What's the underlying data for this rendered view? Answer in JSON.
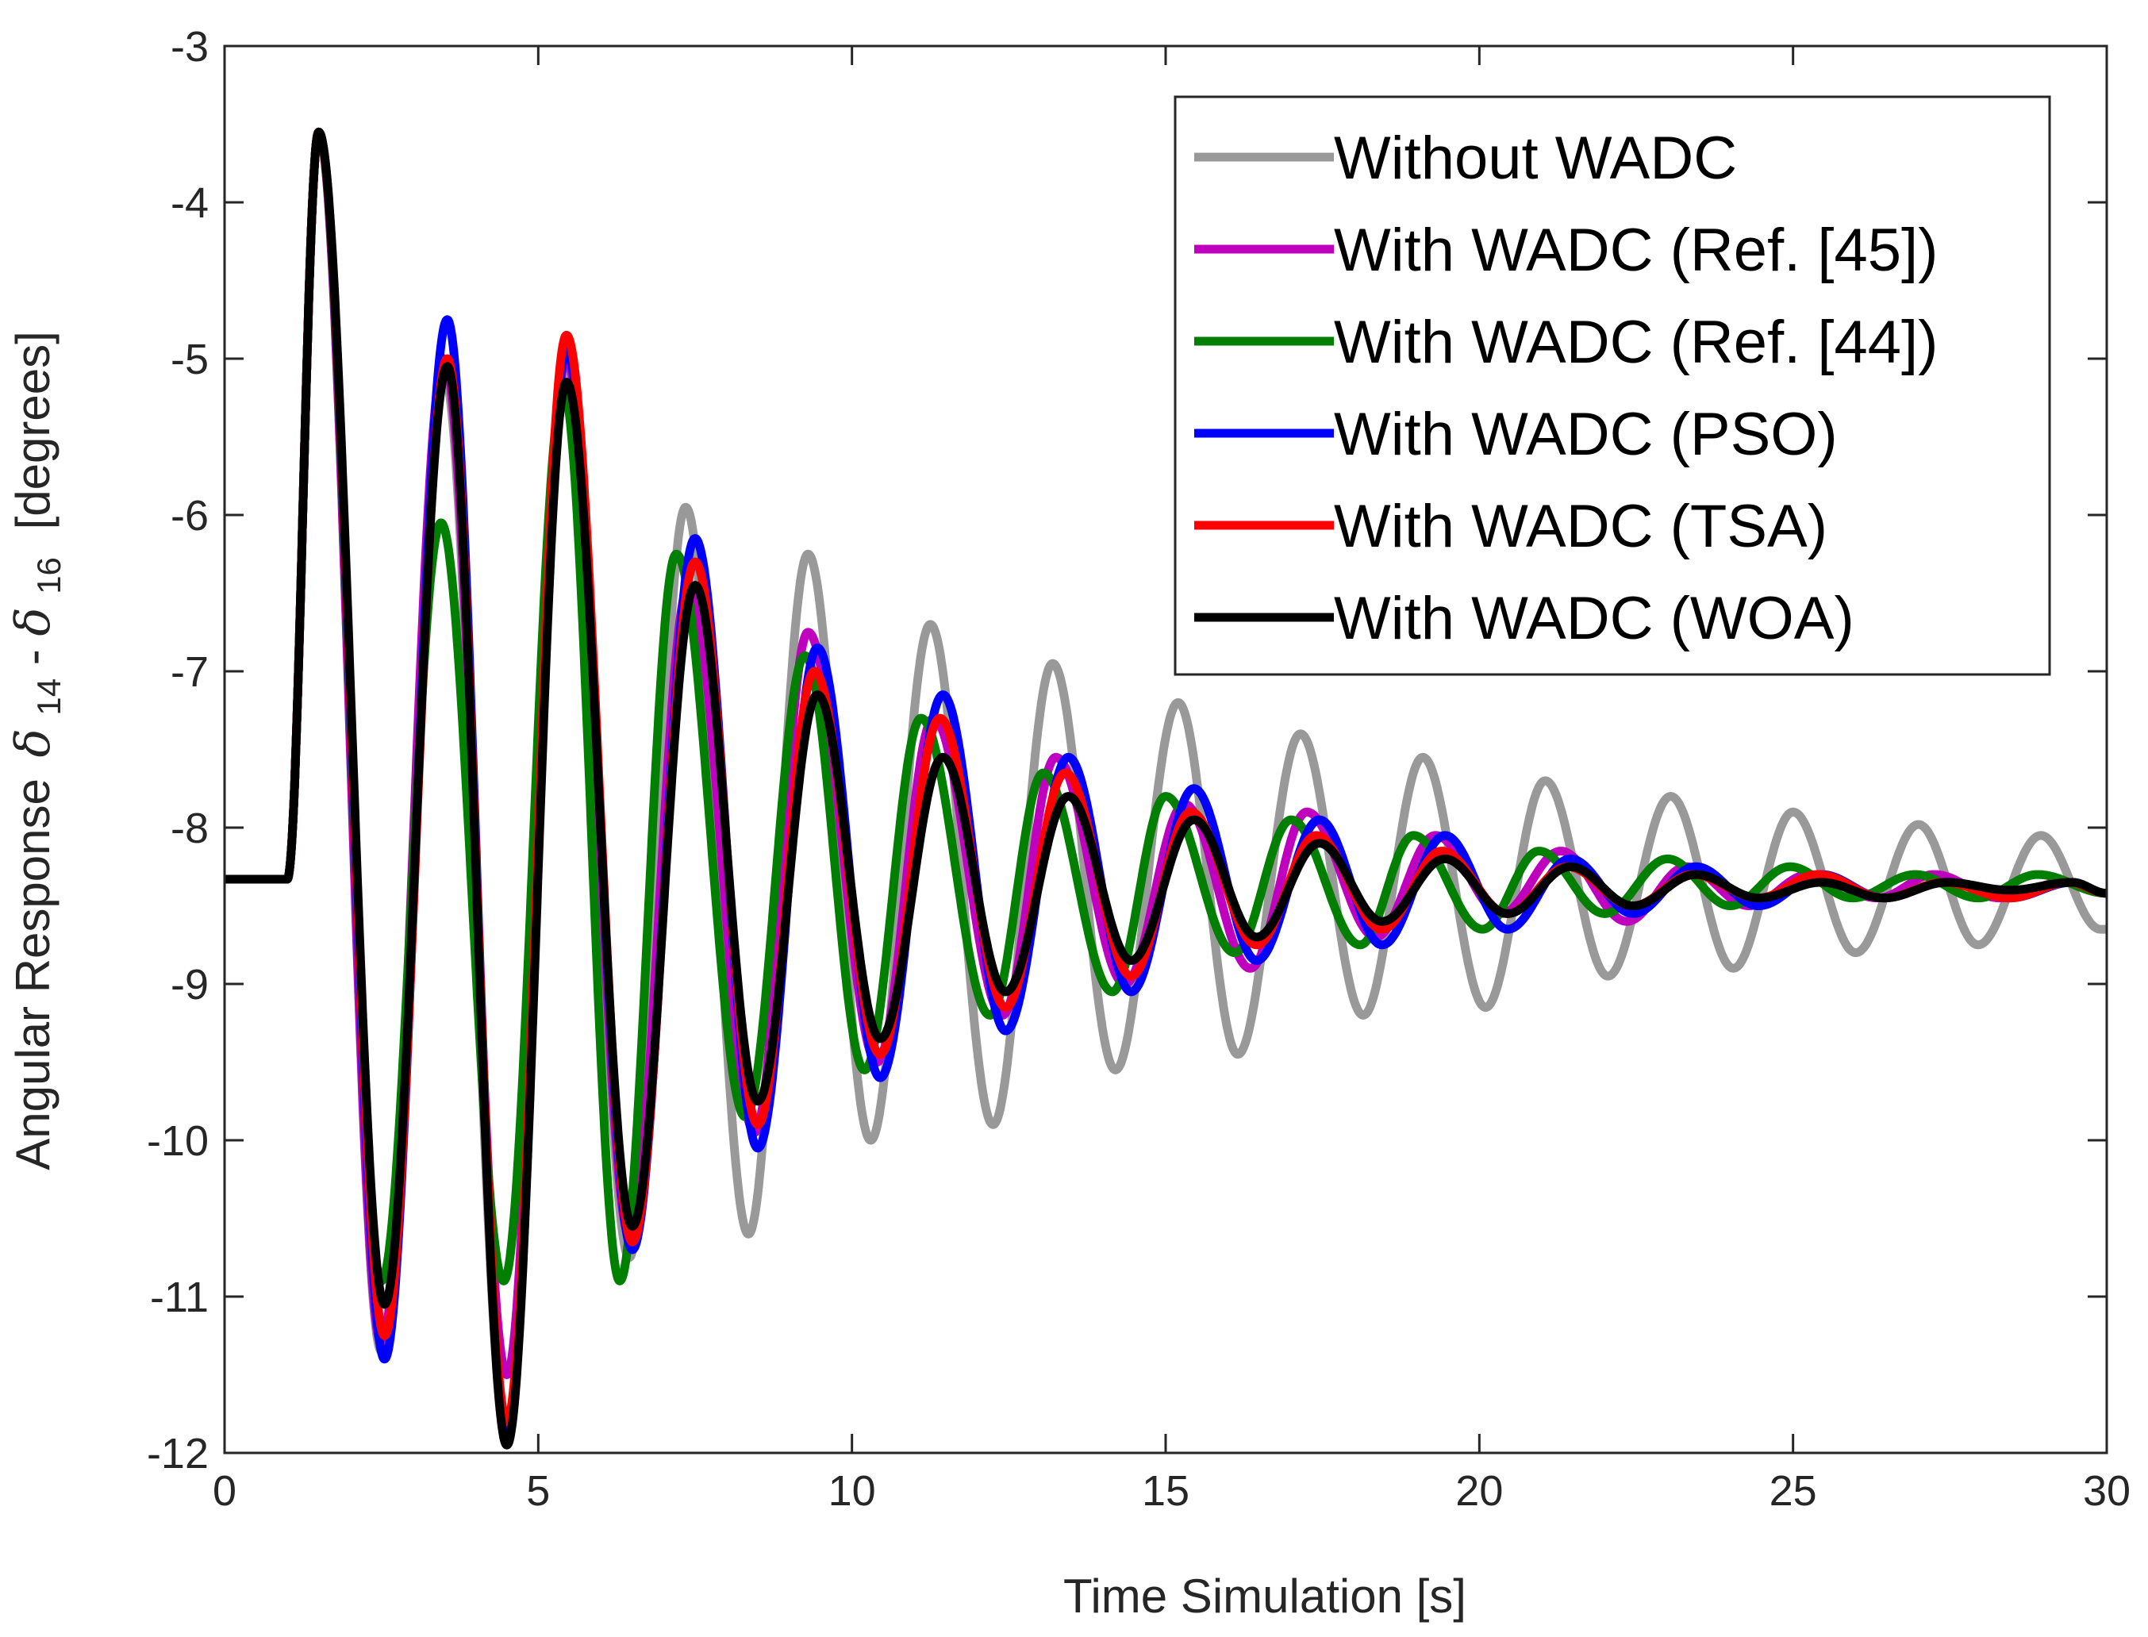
{
  "chart_data": {
    "type": "line",
    "title": "",
    "xlabel": "Time Simulation [s]",
    "ylabel": {
      "prefix": "Angular Response",
      "symbol1": "δ",
      "sub1": "14",
      "dash": "-",
      "symbol2": "δ",
      "sub2": "16",
      "suffix": "[degrees]"
    },
    "xlim": [
      0,
      30
    ],
    "ylim": [
      -12,
      -3
    ],
    "xticks": [
      0,
      5,
      10,
      15,
      20,
      25,
      30
    ],
    "yticks": [
      -3,
      -4,
      -5,
      -6,
      -7,
      -8,
      -9,
      -10,
      -11,
      -12
    ],
    "grid": false,
    "legend_position": "top-right",
    "series": [
      {
        "name": "Without WADC",
        "color": "#999999",
        "period": 1.96,
        "tau": 10.0,
        "amp": 6.4,
        "phase": 0.0,
        "width": 11,
        "extrema": [
          [
            1.5,
            -3.55
          ],
          [
            2.5,
            -11.35
          ],
          [
            3.5,
            -5.1
          ],
          [
            4.5,
            -11.9
          ],
          [
            5.45,
            -5.1
          ],
          [
            6.45,
            -10.75
          ],
          [
            7.35,
            -5.95
          ],
          [
            8.35,
            -10.6
          ],
          [
            9.3,
            -6.25
          ],
          [
            10.3,
            -10.0
          ],
          [
            11.25,
            -6.7
          ],
          [
            12.25,
            -9.9
          ],
          [
            13.2,
            -6.95
          ],
          [
            14.2,
            -9.55
          ],
          [
            15.2,
            -7.2
          ],
          [
            16.15,
            -9.45
          ],
          [
            17.15,
            -7.4
          ],
          [
            18.15,
            -9.2
          ],
          [
            19.1,
            -7.55
          ],
          [
            20.1,
            -9.15
          ],
          [
            21.05,
            -7.7
          ],
          [
            22.05,
            -8.95
          ],
          [
            23.05,
            -7.8
          ],
          [
            24.05,
            -8.9
          ],
          [
            25.0,
            -7.9
          ],
          [
            26.0,
            -8.8
          ],
          [
            27.0,
            -7.98
          ],
          [
            27.95,
            -8.75
          ],
          [
            28.95,
            -8.05
          ],
          [
            29.9,
            -8.65
          ]
        ]
      },
      {
        "name": "With WADC (Ref. [45])",
        "color": "#bf00bf",
        "period": 2.0,
        "tau": 4.5,
        "amp": 6.4,
        "phase": 0.0,
        "width": 11,
        "extrema": [
          [
            1.5,
            -3.55
          ],
          [
            2.5,
            -11.3
          ],
          [
            3.5,
            -5.0
          ],
          [
            4.5,
            -11.5
          ],
          [
            5.45,
            -5.0
          ],
          [
            6.45,
            -10.6
          ],
          [
            7.4,
            -6.45
          ],
          [
            8.45,
            -9.95
          ],
          [
            9.3,
            -6.75
          ],
          [
            10.4,
            -9.5
          ],
          [
            11.3,
            -7.3
          ],
          [
            12.4,
            -9.2
          ],
          [
            13.25,
            -7.55
          ],
          [
            14.35,
            -9.0
          ],
          [
            15.3,
            -7.85
          ],
          [
            16.35,
            -8.9
          ],
          [
            17.25,
            -7.9
          ],
          [
            18.35,
            -8.7
          ],
          [
            19.3,
            -8.05
          ],
          [
            20.35,
            -8.55
          ],
          [
            21.3,
            -8.15
          ],
          [
            22.35,
            -8.6
          ],
          [
            23.3,
            -8.25
          ],
          [
            24.3,
            -8.5
          ],
          [
            25.25,
            -8.3
          ],
          [
            26.35,
            -8.45
          ],
          [
            27.25,
            -8.3
          ],
          [
            28.3,
            -8.45
          ],
          [
            29.3,
            -8.35
          ],
          [
            30.0,
            -8.42
          ]
        ]
      },
      {
        "name": "With WADC (Ref. [44])",
        "color": "#007f00",
        "period": 1.94,
        "tau": 4.5,
        "amp": 6.4,
        "phase": 0.0,
        "width": 11,
        "extrema": [
          [
            1.5,
            -3.55
          ],
          [
            2.5,
            -10.9
          ],
          [
            3.45,
            -6.05
          ],
          [
            4.45,
            -10.9
          ],
          [
            5.4,
            -5.2
          ],
          [
            6.3,
            -10.9
          ],
          [
            7.2,
            -6.25
          ],
          [
            8.3,
            -9.85
          ],
          [
            9.25,
            -6.9
          ],
          [
            10.2,
            -9.55
          ],
          [
            11.1,
            -7.3
          ],
          [
            12.2,
            -9.2
          ],
          [
            13.05,
            -7.65
          ],
          [
            14.15,
            -9.05
          ],
          [
            15.0,
            -7.8
          ],
          [
            16.1,
            -8.8
          ],
          [
            17.0,
            -7.95
          ],
          [
            18.1,
            -8.75
          ],
          [
            18.95,
            -8.05
          ],
          [
            20.05,
            -8.65
          ],
          [
            20.95,
            -8.15
          ],
          [
            22.0,
            -8.55
          ],
          [
            23.0,
            -8.2
          ],
          [
            24.0,
            -8.5
          ],
          [
            24.95,
            -8.25
          ],
          [
            25.95,
            -8.45
          ],
          [
            26.95,
            -8.3
          ],
          [
            27.95,
            -8.45
          ],
          [
            28.9,
            -8.3
          ],
          [
            30.0,
            -8.42
          ]
        ]
      },
      {
        "name": "With WADC (PSO)",
        "color": "#0000ff",
        "period": 2.0,
        "tau": 4.5,
        "amp": 6.4,
        "phase": 0.0,
        "width": 11,
        "extrema": [
          [
            1.5,
            -3.55
          ],
          [
            2.55,
            -11.4
          ],
          [
            3.55,
            -4.75
          ],
          [
            4.5,
            -11.9
          ],
          [
            5.45,
            -4.95
          ],
          [
            6.5,
            -10.7
          ],
          [
            7.5,
            -6.15
          ],
          [
            8.5,
            -10.05
          ],
          [
            9.45,
            -6.85
          ],
          [
            10.45,
            -9.6
          ],
          [
            11.45,
            -7.15
          ],
          [
            12.45,
            -9.3
          ],
          [
            13.45,
            -7.55
          ],
          [
            14.45,
            -9.05
          ],
          [
            15.45,
            -7.75
          ],
          [
            16.45,
            -8.85
          ],
          [
            17.45,
            -7.95
          ],
          [
            18.45,
            -8.75
          ],
          [
            19.45,
            -8.05
          ],
          [
            20.45,
            -8.65
          ],
          [
            21.45,
            -8.2
          ],
          [
            22.45,
            -8.55
          ],
          [
            23.45,
            -8.25
          ],
          [
            24.45,
            -8.5
          ],
          [
            25.45,
            -8.3
          ],
          [
            26.45,
            -8.45
          ],
          [
            27.45,
            -8.35
          ],
          [
            28.45,
            -8.45
          ],
          [
            29.45,
            -8.35
          ],
          [
            30.0,
            -8.42
          ]
        ]
      },
      {
        "name": "With WADC (TSA)",
        "color": "#ff0000",
        "period": 2.0,
        "tau": 4.5,
        "amp": 6.4,
        "phase": 0.0,
        "width": 11,
        "extrema": [
          [
            1.5,
            -3.55
          ],
          [
            2.55,
            -11.25
          ],
          [
            3.55,
            -5.0
          ],
          [
            4.5,
            -11.8
          ],
          [
            5.45,
            -4.85
          ],
          [
            6.5,
            -10.65
          ],
          [
            7.5,
            -6.3
          ],
          [
            8.5,
            -9.9
          ],
          [
            9.4,
            -7.0
          ],
          [
            10.45,
            -9.45
          ],
          [
            11.4,
            -7.3
          ],
          [
            12.45,
            -9.15
          ],
          [
            13.4,
            -7.65
          ],
          [
            14.45,
            -8.95
          ],
          [
            15.4,
            -7.9
          ],
          [
            16.45,
            -8.75
          ],
          [
            17.4,
            -8.05
          ],
          [
            18.45,
            -8.65
          ],
          [
            19.4,
            -8.15
          ],
          [
            20.45,
            -8.55
          ],
          [
            21.4,
            -8.25
          ],
          [
            22.45,
            -8.5
          ],
          [
            23.4,
            -8.3
          ],
          [
            24.45,
            -8.45
          ],
          [
            25.4,
            -8.3
          ],
          [
            26.45,
            -8.45
          ],
          [
            27.4,
            -8.35
          ],
          [
            28.45,
            -8.45
          ],
          [
            29.4,
            -8.35
          ],
          [
            30.0,
            -8.42
          ]
        ]
      },
      {
        "name": "With WADC (WOA)",
        "color": "#000000",
        "period": 2.0,
        "tau": 4.5,
        "amp": 6.4,
        "phase": 0.0,
        "width": 11,
        "extrema": [
          [
            1.5,
            -3.55
          ],
          [
            2.55,
            -11.05
          ],
          [
            3.55,
            -5.05
          ],
          [
            4.5,
            -11.95
          ],
          [
            5.45,
            -5.15
          ],
          [
            6.5,
            -10.55
          ],
          [
            7.5,
            -6.45
          ],
          [
            8.5,
            -9.75
          ],
          [
            9.45,
            -7.15
          ],
          [
            10.45,
            -9.35
          ],
          [
            11.45,
            -7.55
          ],
          [
            12.45,
            -9.05
          ],
          [
            13.45,
            -7.8
          ],
          [
            14.45,
            -8.85
          ],
          [
            15.45,
            -7.95
          ],
          [
            16.45,
            -8.7
          ],
          [
            17.45,
            -8.1
          ],
          [
            18.45,
            -8.6
          ],
          [
            19.45,
            -8.2
          ],
          [
            20.45,
            -8.55
          ],
          [
            21.45,
            -8.25
          ],
          [
            22.45,
            -8.5
          ],
          [
            23.45,
            -8.3
          ],
          [
            24.45,
            -8.45
          ],
          [
            25.45,
            -8.35
          ],
          [
            26.45,
            -8.45
          ],
          [
            27.45,
            -8.35
          ],
          [
            28.45,
            -8.4
          ],
          [
            29.45,
            -8.35
          ],
          [
            30.0,
            -8.42
          ]
        ]
      }
    ],
    "initial_value": -8.33,
    "disturbance_time": 1.0
  }
}
